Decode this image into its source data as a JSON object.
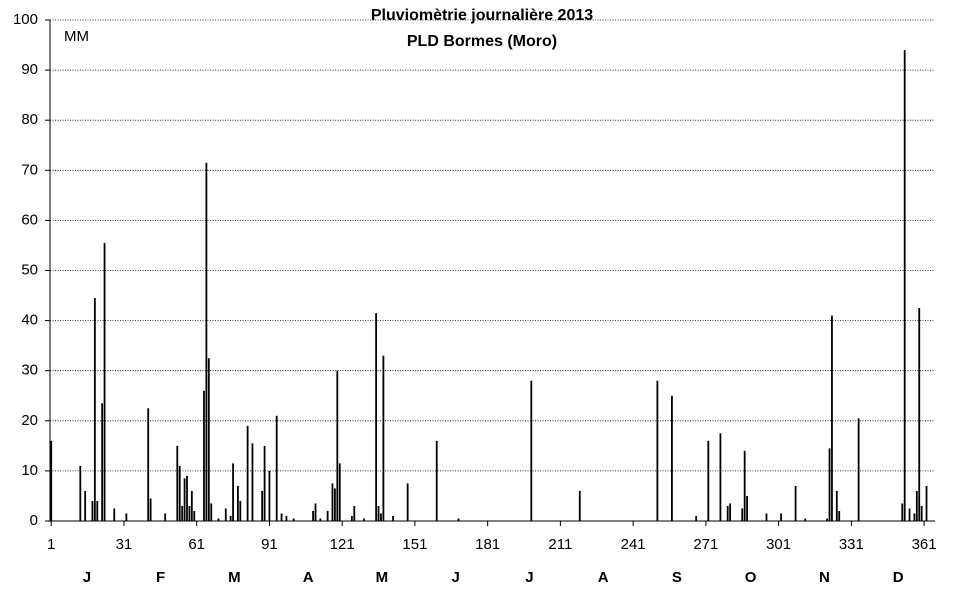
{
  "chart_data": {
    "type": "bar",
    "title": "Pluviomètrie journalière 2013",
    "subtitle": "PLD Bormes (Moro)",
    "y_label": "MM",
    "color": "#000000",
    "grid": true,
    "xlim": [
      0.5,
      365.5
    ],
    "ylim": [
      0,
      100
    ],
    "xticks": [
      1,
      31,
      61,
      91,
      121,
      151,
      181,
      211,
      241,
      271,
      301,
      331,
      361
    ],
    "yticks": [
      0,
      10,
      20,
      30,
      40,
      50,
      60,
      70,
      80,
      90,
      100
    ],
    "months": [
      "J",
      "F",
      "M",
      "A",
      "M",
      "J",
      "J",
      "A",
      "S",
      "O",
      "N",
      "D"
    ],
    "x": [
      1,
      13,
      15,
      18,
      19,
      20,
      22,
      23,
      27,
      32,
      41,
      42,
      48,
      53,
      54,
      55,
      56,
      57,
      58,
      59,
      60,
      64,
      65,
      66,
      67,
      70,
      73,
      75,
      76,
      78,
      79,
      82,
      84,
      88,
      89,
      91,
      94,
      96,
      98,
      101,
      109,
      110,
      112,
      115,
      117,
      118,
      119,
      120,
      125,
      126,
      130,
      135,
      136,
      137,
      138,
      142,
      148,
      160,
      169,
      199,
      219,
      251,
      257,
      267,
      272,
      277,
      280,
      281,
      286,
      287,
      288,
      296,
      302,
      308,
      312,
      321,
      322,
      323,
      325,
      326,
      334,
      352,
      353,
      355,
      357,
      358,
      359,
      360,
      362
    ],
    "values": [
      16,
      11,
      6,
      4,
      44.5,
      4,
      23.5,
      55.5,
      2.5,
      1.5,
      22.5,
      4.5,
      1.5,
      15,
      11,
      3,
      8.5,
      9,
      3,
      6,
      2,
      26,
      71.5,
      32.5,
      3.5,
      0.5,
      2.5,
      1,
      11.5,
      7,
      4,
      19,
      15.5,
      6,
      15,
      10,
      21,
      1.5,
      1,
      0.5,
      2,
      3.5,
      0.5,
      2,
      7.5,
      6.5,
      30,
      11.5,
      1,
      3,
      0.5,
      41.5,
      3,
      1.5,
      33,
      1,
      7.5,
      16,
      0.5,
      28,
      6,
      28,
      25,
      1,
      16,
      17.5,
      3,
      3.5,
      2.5,
      14,
      5,
      1.5,
      1.5,
      7,
      0.5,
      0.5,
      14.5,
      41,
      6,
      2,
      20.5,
      3.5,
      94,
      2.5,
      1.5,
      6,
      42.5,
      3,
      7
    ]
  }
}
